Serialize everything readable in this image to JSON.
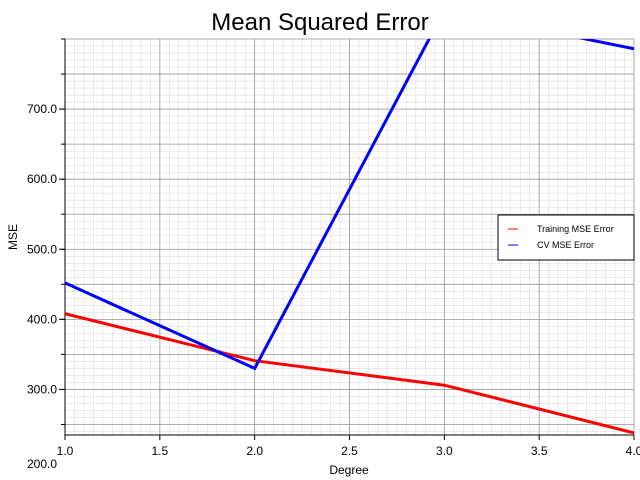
{
  "chart_data": {
    "type": "line",
    "title": "Mean Squared Error",
    "xlabel": "Degree",
    "ylabel": "MSE",
    "xlim": [
      1.0,
      4.0
    ],
    "ylim": [
      235,
      800
    ],
    "x_ticks": [
      1.0,
      1.5,
      2.0,
      2.5,
      3.0,
      3.5,
      4.0
    ],
    "x_tick_labels": [
      "1.0",
      "1.5",
      "2.0",
      "2.5",
      "3.0",
      "3.5",
      "4.0"
    ],
    "y_ticks": [
      200,
      300,
      400,
      500,
      600,
      700
    ],
    "y_tick_labels": [
      "200.0",
      "300.0",
      "400.0",
      "500.0",
      "600.0",
      "700.0"
    ],
    "grid": true,
    "legend_position": "right",
    "series": [
      {
        "name": "Training MSE Error",
        "color": "#ff0000",
        "x": [
          1.0,
          2.0,
          3.0,
          4.0
        ],
        "y": [
          408,
          341,
          306,
          238
        ]
      },
      {
        "name": "CV MSE Error",
        "color": "#0000ff",
        "x": [
          1.0,
          2.0,
          3.0,
          4.0
        ],
        "y": [
          452,
          330,
          841,
          786
        ]
      }
    ]
  }
}
